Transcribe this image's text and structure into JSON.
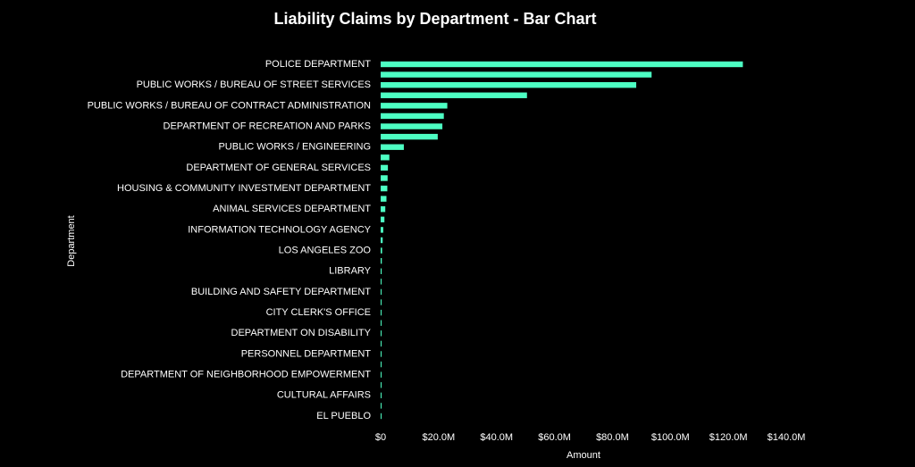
{
  "chart_data": {
    "type": "bar",
    "orientation": "horizontal",
    "title": "Liability Claims by Department - Bar Chart",
    "xlabel": "Amount",
    "ylabel": "Department",
    "xlim": [
      0,
      140000000
    ],
    "x_ticks": [
      {
        "value": 0,
        "label": "$0"
      },
      {
        "value": 20000000,
        "label": "$20.0M"
      },
      {
        "value": 40000000,
        "label": "$40.0M"
      },
      {
        "value": 60000000,
        "label": "$60.0M"
      },
      {
        "value": 80000000,
        "label": "$80.0M"
      },
      {
        "value": 100000000,
        "label": "$100.0M"
      },
      {
        "value": 120000000,
        "label": "$120.0M"
      },
      {
        "value": 140000000,
        "label": "$140.0M"
      }
    ],
    "bar_color": "#4dffc3",
    "background": "#000000",
    "categories": [
      "POLICE DEPARTMENT",
      "",
      "PUBLIC WORKS / BUREAU OF STREET SERVICES",
      "",
      "PUBLIC WORKS / BUREAU OF CONTRACT ADMINISTRATION",
      "",
      "DEPARTMENT OF RECREATION AND PARKS",
      "",
      "PUBLIC WORKS / ENGINEERING",
      "",
      "DEPARTMENT OF GENERAL SERVICES",
      "",
      "HOUSING & COMMUNITY INVESTMENT DEPARTMENT",
      "",
      "ANIMAL SERVICES DEPARTMENT",
      "",
      "INFORMATION TECHNOLOGY AGENCY",
      "",
      "LOS ANGELES ZOO",
      "",
      "LIBRARY",
      "",
      "BUILDING AND SAFETY DEPARTMENT",
      "",
      "CITY CLERK'S OFFICE",
      "",
      "DEPARTMENT ON DISABILITY",
      "",
      "PERSONNEL DEPARTMENT",
      "",
      "DEPARTMENT OF NEIGHBORHOOD EMPOWERMENT",
      "",
      "CULTURAL AFFAIRS",
      "",
      "EL PUEBLO"
    ],
    "values": [
      125000000,
      93500000,
      88200000,
      50500000,
      23000000,
      21800000,
      21300000,
      19700000,
      8000000,
      3000000,
      2500000,
      2400000,
      2300000,
      2000000,
      1600000,
      1300000,
      900000,
      700000,
      500000,
      400000,
      350000,
      300000,
      250000,
      200000,
      180000,
      150000,
      130000,
      120000,
      100000,
      90000,
      80000,
      70000,
      60000,
      50000,
      40000
    ]
  }
}
